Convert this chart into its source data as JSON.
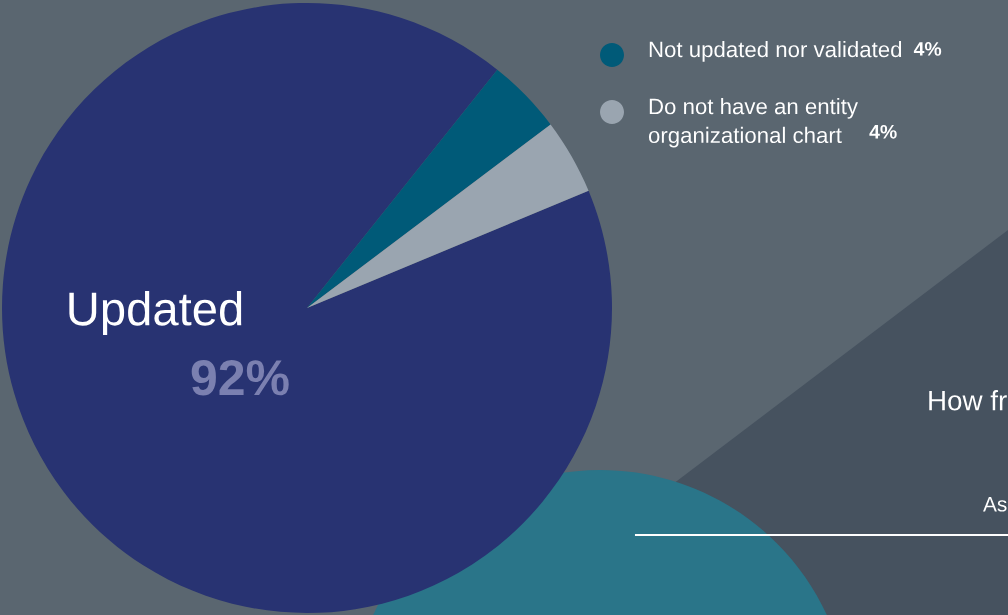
{
  "chart_data": {
    "type": "pie",
    "categories": [
      "Updated",
      "Not updated nor validated",
      "Do not have an entity\norganizational chart"
    ],
    "values": [
      92,
      4,
      4
    ],
    "colors": [
      "#283372",
      "#005a78",
      "#9aa5b0"
    ],
    "value_labels": [
      "92%",
      "4%",
      "4%"
    ],
    "legend": "top right",
    "annotations": [
      "How fr",
      "As"
    ]
  }
}
